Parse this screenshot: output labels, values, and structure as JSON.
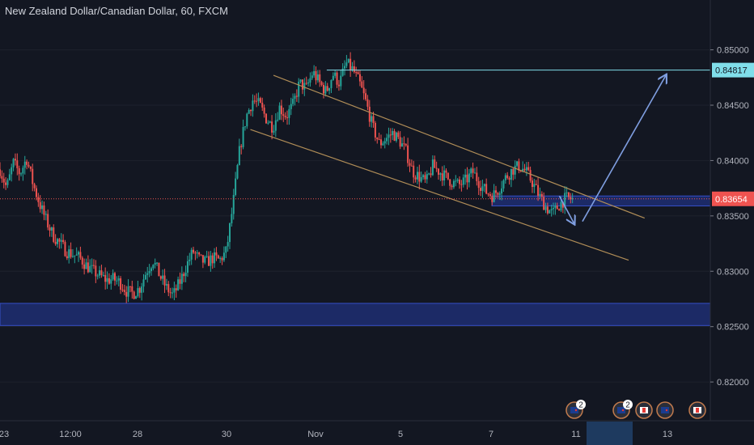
{
  "header": {
    "title": "New Zealand Dollar/Canadian Dollar, 60, FXCM"
  },
  "colors": {
    "background": "#131722",
    "bull": "#26a69a",
    "bear": "#ef5350",
    "channel": "#b08d57",
    "resistance_line": "#80deea",
    "zone": "#1e2e72",
    "zone_border": "#3650c8",
    "arrow": "#7f9ee0",
    "price_label": "#ef5350",
    "axis_text": "#b2b5be"
  },
  "chart_data": {
    "type": "candlestick",
    "title": "New Zealand Dollar/Canadian Dollar, 60, FXCM",
    "ylim": [
      0.8165,
      0.8545
    ],
    "y_ticks": [
      "0.82000",
      "0.82500",
      "0.83000",
      "0.83500",
      "0.84000",
      "0.84500",
      "0.85000"
    ],
    "x_ticks": [
      "23",
      "12:00",
      "28",
      "30",
      "Nov",
      "5",
      "7",
      "11",
      "13"
    ],
    "current_price": "0.83654",
    "resistance_level": "0.84817",
    "price_path": [
      0.8392,
      0.8375,
      0.8398,
      0.8388,
      0.8402,
      0.8378,
      0.836,
      0.8345,
      0.8332,
      0.8325,
      0.8318,
      0.8315,
      0.8312,
      0.8305,
      0.83,
      0.8296,
      0.8292,
      0.8293,
      0.829,
      0.8282,
      0.828,
      0.8285,
      0.83,
      0.831,
      0.8296,
      0.8285,
      0.8278,
      0.829,
      0.8305,
      0.8318,
      0.831,
      0.8308,
      0.8312,
      0.831,
      0.8318,
      0.836,
      0.841,
      0.844,
      0.8455,
      0.845,
      0.8438,
      0.843,
      0.8448,
      0.844,
      0.845,
      0.847,
      0.8465,
      0.848,
      0.847,
      0.8462,
      0.8478,
      0.847,
      0.8488,
      0.8482,
      0.847,
      0.8452,
      0.843,
      0.8415,
      0.842,
      0.8425,
      0.8418,
      0.8408,
      0.839,
      0.8385,
      0.838,
      0.8395,
      0.839,
      0.8385,
      0.838,
      0.8378,
      0.8382,
      0.839,
      0.838,
      0.8372,
      0.8368,
      0.8375,
      0.8385,
      0.8392,
      0.8395,
      0.839,
      0.838,
      0.8368,
      0.8358,
      0.8352,
      0.836,
      0.8366,
      0.8365
    ],
    "channel_lines": [
      {
        "from": [
          0.385,
          0.8477
        ],
        "to": [
          0.9075,
          0.8348
        ]
      },
      {
        "from": [
          0.3525,
          0.8428
        ],
        "to": [
          0.885,
          0.831
        ]
      }
    ],
    "zones": [
      {
        "from": 0.8251,
        "to": 0.8271
      },
      {
        "x_from": 0.6925,
        "from": 0.8359,
        "to": 0.8368
      }
    ],
    "events": [
      {
        "label": "2",
        "icon": "nz-flag-icon"
      },
      {
        "label": "2",
        "icon": "nz-flag-icon"
      },
      {
        "label": "",
        "icon": "ca-flag-icon"
      },
      {
        "label": "",
        "icon": "nz-flag-icon"
      },
      {
        "label": "",
        "icon": "ca-flag-icon"
      }
    ]
  }
}
